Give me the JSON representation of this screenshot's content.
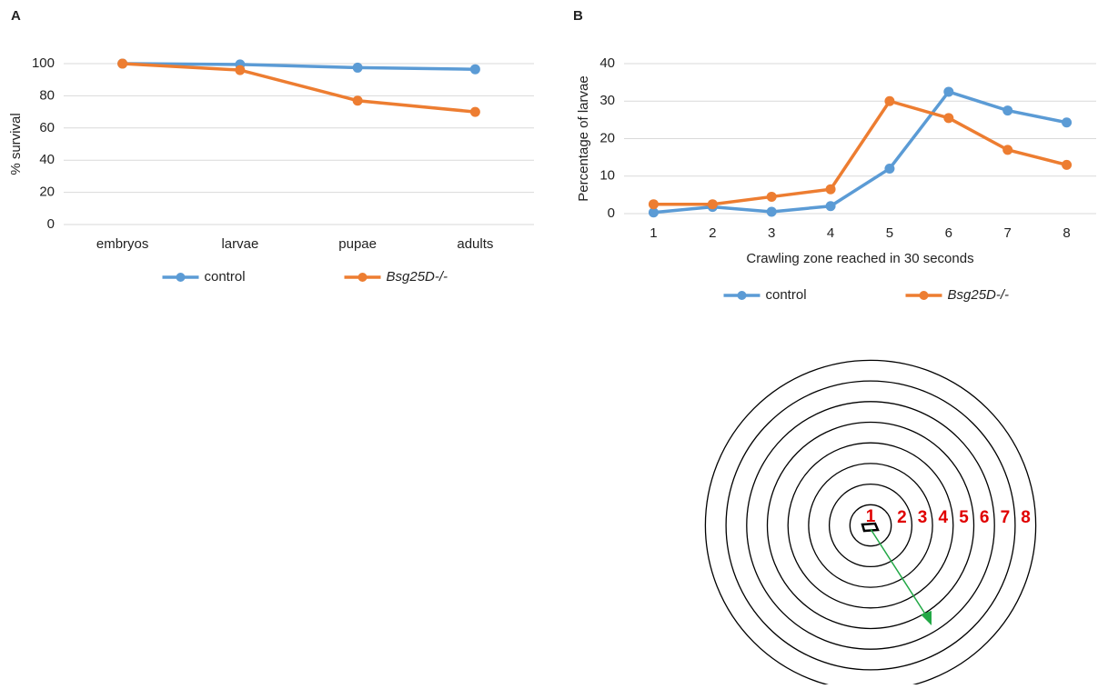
{
  "chart_data": [
    {
      "type": "line",
      "panel": "A",
      "y_label": "% survival",
      "categories": [
        "embryos",
        "larvae",
        "pupae",
        "adults"
      ],
      "series": [
        {
          "name": "control",
          "color": "#5b9bd5",
          "values": [
            100,
            99.5,
            97.5,
            96.5
          ]
        },
        {
          "name": "Bsg25D-/-",
          "color": "#ed7d31",
          "values": [
            100,
            96,
            77,
            70
          ]
        }
      ],
      "ylim": [
        0,
        100
      ],
      "yticks": [
        0,
        20,
        40,
        60,
        80,
        100
      ],
      "grid": true,
      "legend": "bottom"
    },
    {
      "type": "line",
      "panel": "B",
      "y_label": "Percentage of larvae",
      "x_label": "Crawling zone reached in 30 seconds",
      "categories": [
        "1",
        "2",
        "3",
        "4",
        "5",
        "6",
        "7",
        "8"
      ],
      "series": [
        {
          "name": "control",
          "color": "#5b9bd5",
          "values": [
            0.3,
            1.8,
            0.5,
            2,
            12,
            32.5,
            27.5,
            24.3
          ]
        },
        {
          "name": "Bsg25D-/-",
          "color": "#ed7d31",
          "values": [
            2.5,
            2.5,
            4.5,
            6.5,
            30,
            25.5,
            17,
            13
          ]
        }
      ],
      "ylim": [
        0,
        40
      ],
      "yticks": [
        0,
        10,
        20,
        30,
        40
      ],
      "grid": true,
      "legend": "bottom"
    }
  ],
  "diagram": {
    "zone_labels": [
      "1",
      "2",
      "3",
      "4",
      "5",
      "6",
      "7",
      "8"
    ]
  }
}
